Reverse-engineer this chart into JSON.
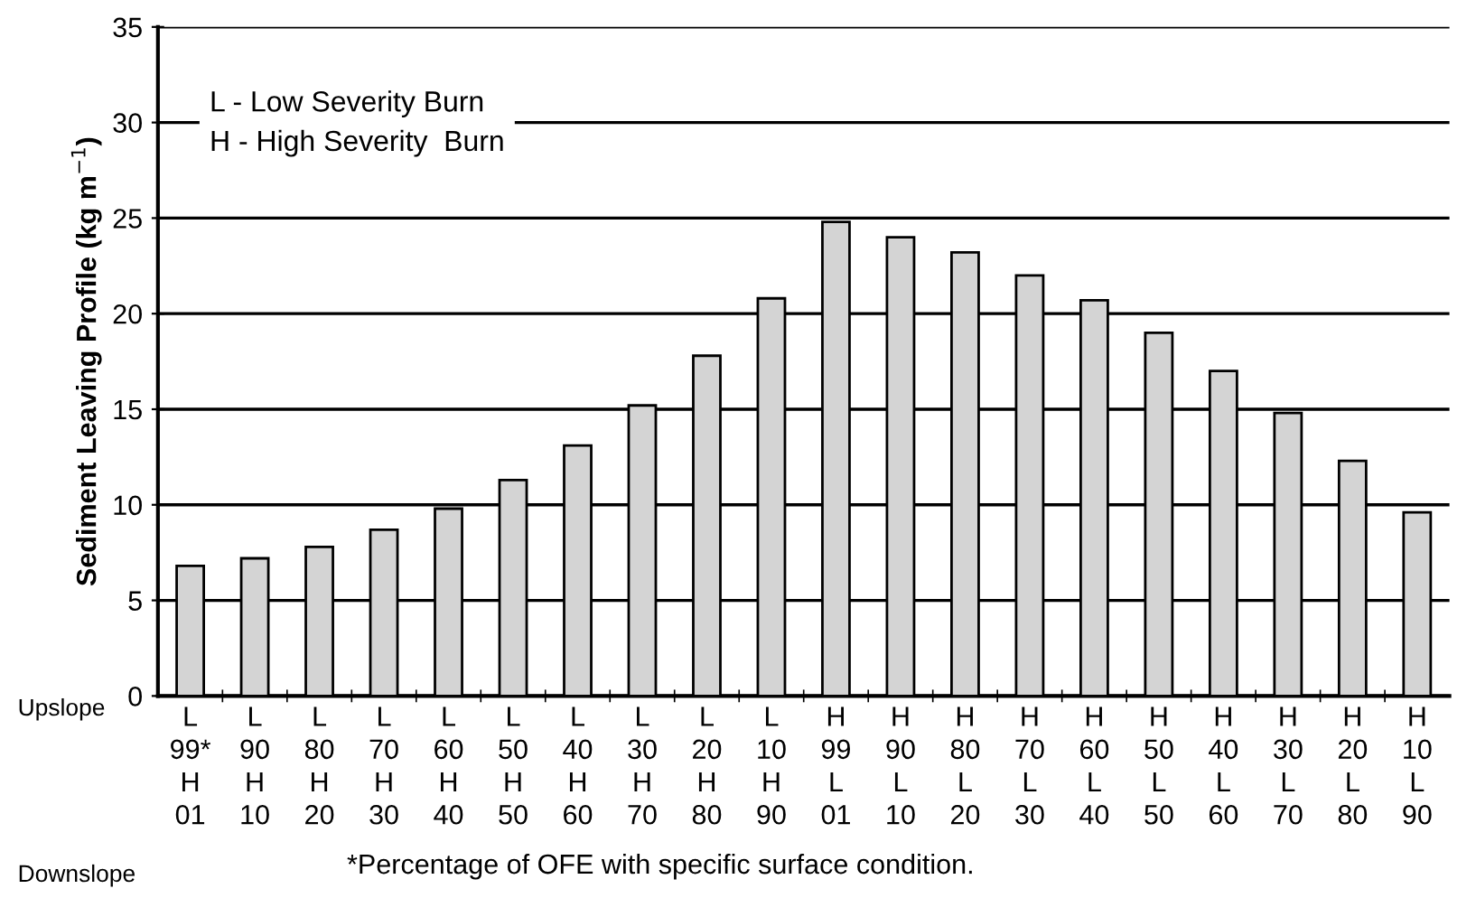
{
  "chart_data": {
    "type": "bar",
    "ylabel": "Sediment Leaving Profile (kg m$^{−1}$)",
    "categories": [
      "L\n99*\nH\n01",
      "L\n90\nH\n10",
      "L\n80\nH\n20",
      "L\n70\nH\n30",
      "L\n60\nH\n40",
      "L\n50\nH\n50",
      "L\n40\nH\n60",
      "L\n30\nH\n70",
      "L\n20\nH\n80",
      "L\n10\nH\n90",
      "H\n99\nL\n01",
      "H\n90\nL\n10",
      "H\n80\nL\n20",
      "H\n70\nL\n30",
      "H\n60\nL\n40",
      "H\n50\nL\n50",
      "H\n40\nL\n60",
      "H\n30\nL\n70",
      "H\n20\nL\n80",
      "H\n10\nL\n90"
    ],
    "values": [
      6.8,
      7.2,
      7.8,
      8.7,
      9.8,
      11.3,
      13.1,
      15.2,
      17.8,
      20.8,
      24.8,
      24.0,
      23.2,
      22.0,
      20.7,
      19.0,
      17.0,
      14.8,
      12.3,
      9.6
    ],
    "color": "#d4d4d4",
    "ylim": [
      0,
      35
    ],
    "yticks": [
      0,
      5,
      10,
      15,
      20,
      25,
      30,
      35
    ],
    "grid": "y",
    "annotations": [
      "L - Low Severity Burn\nH - High Severity  Burn",
      "Upslope",
      "Downslope",
      "*Percentage of OFE with specific surface condition."
    ]
  }
}
